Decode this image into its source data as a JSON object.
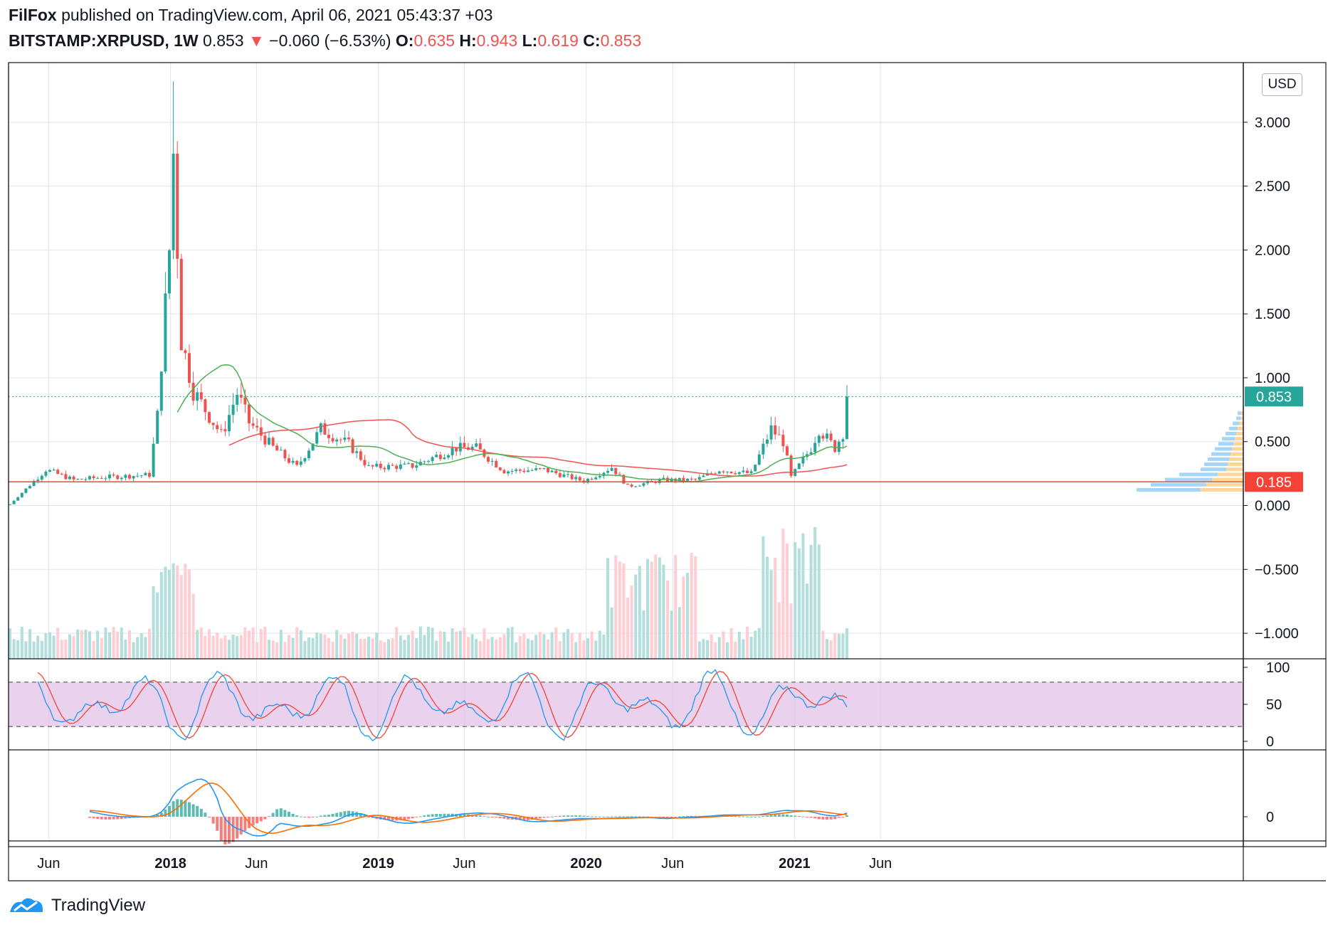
{
  "header": {
    "author": "FilFox",
    "published": "published on TradingView.com, April 06, 2021 05:43:37 +03",
    "symbol": "BITSTAMP:XRPUSD, 1W",
    "price": "0.853",
    "change_arrow": "▼",
    "change": "−0.060 (−6.53%)",
    "o_label": "O:",
    "o_value": "0.635",
    "h_label": "H:",
    "h_value": "0.943",
    "l_label": "L:",
    "l_value": "0.619",
    "c_label": "C:",
    "c_value": "0.853"
  },
  "currency_button": "USD",
  "footer": {
    "brand": "TradingView"
  },
  "colors": {
    "up": "#26a69a",
    "down": "#ef5350",
    "ema": "#ef5350",
    "sma": "#4caf50",
    "stoch_k": "#2196f3",
    "stoch_d": "#f44336",
    "macd": "#2196f3",
    "signal": "#ff6d00",
    "stoch_band": "#e1bee7"
  },
  "chart_data": [
    {
      "type": "candlestick",
      "title": "BITSTAMP:XRPUSD, 1W",
      "y_ticks": [
        "3.000",
        "2.500",
        "2.000",
        "1.500",
        "1.000",
        "0.500",
        "0.000",
        "-0.500",
        "-1.000"
      ],
      "ylim": [
        -1.2,
        3.4
      ],
      "x_ticks": [
        "Jun",
        "2018",
        "Jun",
        "2019",
        "Jun",
        "2020",
        "Jun",
        "2021",
        "Jun"
      ],
      "x_dates": [
        "2017-06",
        "2018-01",
        "2018-06",
        "2019-01",
        "2019-06",
        "2020-01",
        "2020-06",
        "2021-01",
        "2021-06"
      ],
      "last_price_label": "0.853",
      "support_line_label": "0.185",
      "support_level": 0.185,
      "key_candles": [
        {
          "date": "2017-04",
          "close": 0.03
        },
        {
          "date": "2017-06",
          "close": 0.28
        },
        {
          "date": "2017-12",
          "close": 0.7
        },
        {
          "date": "2018-01",
          "high": 3.32,
          "close": 2.76
        },
        {
          "date": "2018-04",
          "close": 0.8
        },
        {
          "date": "2018-09",
          "close": 0.55
        },
        {
          "date": "2019-06",
          "close": 0.44
        },
        {
          "date": "2020-03",
          "low": 0.11,
          "close": 0.17
        },
        {
          "date": "2020-11",
          "high": 0.78,
          "close": 0.6
        },
        {
          "date": "2021-04",
          "open": 0.635,
          "high": 0.943,
          "low": 0.619,
          "close": 0.853
        }
      ]
    },
    {
      "type": "line",
      "title": "Stochastic",
      "y_ticks": [
        "100",
        "50",
        "0"
      ],
      "ylim": [
        0,
        100
      ],
      "bands": [
        20,
        80
      ]
    },
    {
      "type": "line",
      "title": "MACD",
      "y_ticks": [
        "0"
      ]
    }
  ]
}
